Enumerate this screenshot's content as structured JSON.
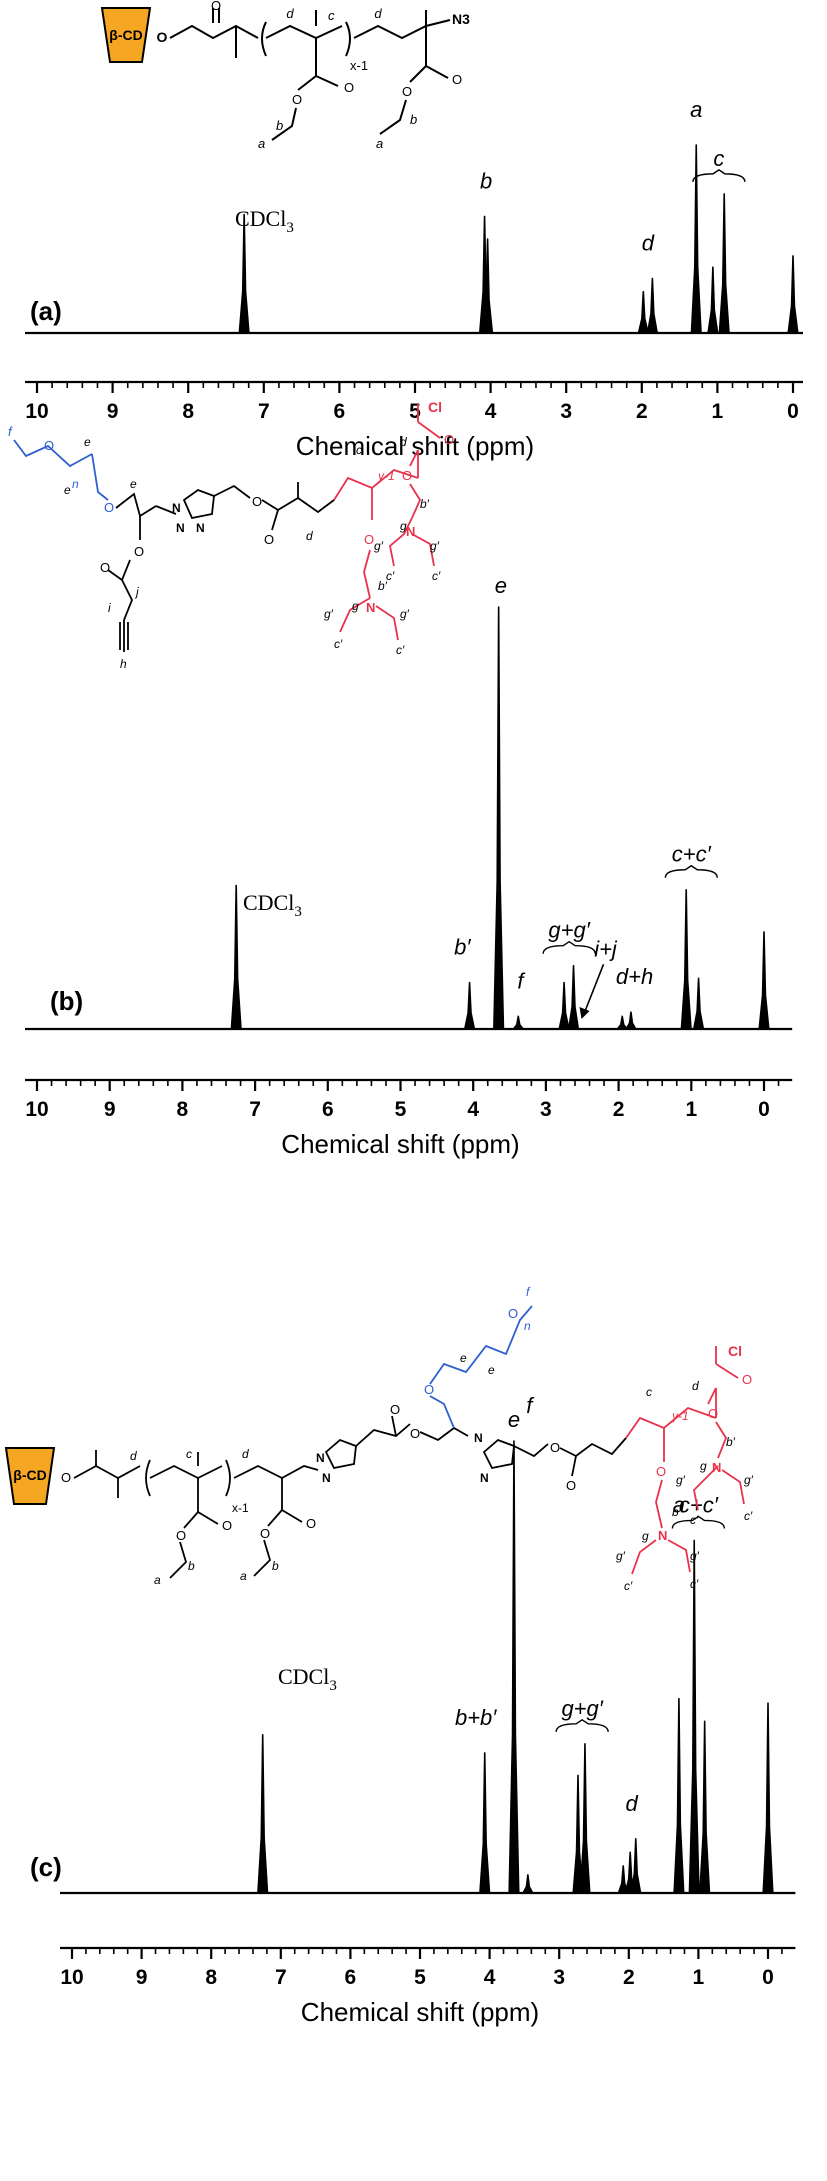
{
  "colors": {
    "ink": "#000000",
    "cd_fill": "#f5a623",
    "peo": "#2f5fd0",
    "pdeaema": "#e8324a"
  },
  "chart_data": [
    {
      "type": "line",
      "panel": "(a)",
      "xlabel": "Chemical shift (ppm)",
      "xlim": [
        10,
        0
      ],
      "x_ticks": [
        "10",
        "9",
        "8",
        "7",
        "6",
        "5",
        "4",
        "3",
        "2",
        "1",
        "0"
      ],
      "solvent_label": "CDCl",
      "solvent_sub": "3",
      "peaks": [
        {
          "shift": 7.26,
          "height": 0.63
        },
        {
          "shift": 4.08,
          "height": 0.62
        },
        {
          "shift": 4.04,
          "height": 0.5
        },
        {
          "shift": 1.98,
          "height": 0.22
        },
        {
          "shift": 1.86,
          "height": 0.29
        },
        {
          "shift": 1.28,
          "height": 1.0
        },
        {
          "shift": 1.06,
          "height": 0.35
        },
        {
          "shift": 0.91,
          "height": 0.74
        },
        {
          "shift": 0.0,
          "height": 0.41
        }
      ],
      "labels": [
        {
          "text": "b",
          "shift": 4.06
        },
        {
          "text": "d",
          "shift": 1.92
        },
        {
          "text": "a",
          "shift": 1.28
        },
        {
          "text": "c",
          "shift": 0.98
        }
      ]
    },
    {
      "type": "line",
      "panel": "(b)",
      "xlabel": "Chemical shift (ppm)",
      "xlim": [
        10,
        -0.25
      ],
      "x_ticks": [
        "10",
        "9",
        "8",
        "7",
        "6",
        "5",
        "4",
        "3",
        "2",
        "1",
        "0"
      ],
      "solvent_label": "CDCl",
      "solvent_sub": "3",
      "peaks": [
        {
          "shift": 7.26,
          "height": 0.34
        },
        {
          "shift": 4.05,
          "height": 0.11
        },
        {
          "shift": 3.65,
          "height": 1.0
        },
        {
          "shift": 3.38,
          "height": 0.03
        },
        {
          "shift": 2.75,
          "height": 0.11
        },
        {
          "shift": 2.62,
          "height": 0.15
        },
        {
          "shift": 1.95,
          "height": 0.03
        },
        {
          "shift": 1.83,
          "height": 0.04
        },
        {
          "shift": 1.07,
          "height": 0.33
        },
        {
          "shift": 0.9,
          "height": 0.12
        },
        {
          "shift": 0.0,
          "height": 0.23
        }
      ],
      "labels": [
        {
          "text": "b′",
          "shift": 4.15
        },
        {
          "text": "f",
          "shift": 3.35
        },
        {
          "text": "e",
          "shift": 3.62
        },
        {
          "text": "g+g′",
          "shift": 2.68
        },
        {
          "text": "i+j",
          "shift": 2.18
        },
        {
          "text": "d+h",
          "shift": 1.78
        },
        {
          "text": "c+c′",
          "shift": 1.0
        }
      ]
    },
    {
      "type": "line",
      "panel": "(c)",
      "xlabel": "Chemical shift (ppm)",
      "xlim": [
        10,
        -0.25
      ],
      "x_ticks": [
        "10",
        "9",
        "8",
        "7",
        "6",
        "5",
        "4",
        "3",
        "2",
        "1",
        "0"
      ],
      "solvent_label": "CDCl",
      "solvent_sub": "3",
      "peaks": [
        {
          "shift": 7.26,
          "height": 0.35
        },
        {
          "shift": 4.07,
          "height": 0.31
        },
        {
          "shift": 3.65,
          "height": 1.0
        },
        {
          "shift": 3.45,
          "height": 0.04
        },
        {
          "shift": 2.73,
          "height": 0.26
        },
        {
          "shift": 2.63,
          "height": 0.33
        },
        {
          "shift": 2.08,
          "height": 0.06
        },
        {
          "shift": 1.98,
          "height": 0.09
        },
        {
          "shift": 1.9,
          "height": 0.12
        },
        {
          "shift": 1.28,
          "height": 0.43
        },
        {
          "shift": 1.06,
          "height": 0.78
        },
        {
          "shift": 0.91,
          "height": 0.38
        },
        {
          "shift": 0.0,
          "height": 0.42
        }
      ],
      "labels": [
        {
          "text": "b+b′",
          "shift": 4.2
        },
        {
          "text": "f",
          "shift": 3.43
        },
        {
          "text": "e",
          "shift": 3.65
        },
        {
          "text": "g+g′",
          "shift": 2.67
        },
        {
          "text": "a",
          "shift": 1.28
        },
        {
          "text": "d",
          "shift": 1.96
        },
        {
          "text": "c+c′",
          "shift": 1.0
        }
      ]
    }
  ],
  "structures": {
    "cd_label": "β-CD",
    "ester_o": "O",
    "azide": "N3",
    "chlorine": "Cl",
    "nitrogen": "N",
    "repeat_x": "x-1",
    "repeat_y": "y-1",
    "repeat_n": "n",
    "a": "a",
    "b": "b",
    "c": "c",
    "d": "d",
    "e": "e",
    "f": "f",
    "g": "g",
    "h": "h",
    "i": "i",
    "j": "j",
    "bp": "b′",
    "cp": "c′",
    "gp": "g′"
  }
}
